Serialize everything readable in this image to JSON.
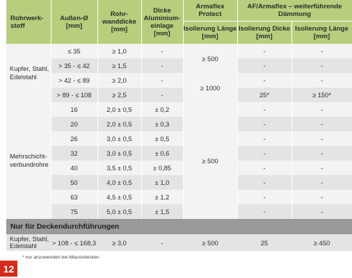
{
  "header": {
    "col1": "Rohrwerk-\nstoff",
    "col2": "Außen-Ø\n[mm]",
    "col3": "Rohr-\nwanddicke\n[mm]",
    "col4": "Dicke\nAluminium-\neinlage\n[mm]",
    "col5_top": "Armaflex\nProtect",
    "col5_sub": "Isolierung Länge\n[mm]",
    "col67_top": "AF/Armaflex – weiterführende\nDämmung",
    "col6_sub": "Isolierung Dicke\n[mm]",
    "col7_sub": "Isolierung Länge\n[mm]"
  },
  "group1": {
    "material": "Kupfer, Stahl,\nEdelstahl",
    "protect_top": "≥ 500",
    "protect_bottom": "≥ 1000",
    "rows": [
      {
        "d": "≤ 35",
        "wall": "≥ 1,0",
        "alu": "-",
        "iso_d": "-",
        "iso_l": "-"
      },
      {
        "d": "> 35 - ≤ 42",
        "wall": "≥ 1,5",
        "alu": "-",
        "iso_d": "-",
        "iso_l": "-"
      },
      {
        "d": "> 42 - ≤ 89",
        "wall": "≥ 2,0",
        "alu": "-",
        "iso_d": "-",
        "iso_l": "-"
      },
      {
        "d": "> 89 - ≤ 108",
        "wall": "≥ 2,5",
        "alu": "-",
        "iso_d": "25*",
        "iso_l": "≥ 150*"
      }
    ]
  },
  "group2": {
    "material": "Mehrschicht-\nverbundrohre",
    "protect": "≥ 500",
    "rows": [
      {
        "d": "16",
        "wall": "2,0 ± 0,5",
        "alu": "± 0,2",
        "iso_d": "-",
        "iso_l": "-"
      },
      {
        "d": "20",
        "wall": "2,0 ± 0,5",
        "alu": "± 0,3",
        "iso_d": "-",
        "iso_l": "-"
      },
      {
        "d": "26",
        "wall": "3,0 ± 0,5",
        "alu": "± 0,5",
        "iso_d": "-",
        "iso_l": "-"
      },
      {
        "d": "32",
        "wall": "3,0 ± 0,5",
        "alu": "± 0,6",
        "iso_d": "-",
        "iso_l": "-"
      },
      {
        "d": "40",
        "wall": "3,5 ± 0,5",
        "alu": "± 0,85",
        "iso_d": "-",
        "iso_l": "-"
      },
      {
        "d": "50",
        "wall": "4,0 ± 0,5",
        "alu": "± 1,0",
        "iso_d": "-",
        "iso_l": "-"
      },
      {
        "d": "63",
        "wall": "4,5 ± 0,5",
        "alu": "± 1,2",
        "iso_d": "-",
        "iso_l": "-"
      },
      {
        "d": "75",
        "wall": "5,0 ± 0,5",
        "alu": "± 1,5",
        "iso_d": "-",
        "iso_l": "-"
      }
    ]
  },
  "section_bar": "Nur für Deckendurchführungen",
  "group3": {
    "material": "Kupfer, Stahl,\nEdelstahl",
    "d": "> 108 - ≤ 168,3",
    "wall": "≥ 3,0",
    "alu": "-",
    "protect": "≥ 500",
    "iso_d": "25",
    "iso_l": "≥ 450"
  },
  "footnote": "* nur anzuwenden bei Massivdecken",
  "page_badge": "12",
  "colors": {
    "header_bg": "#b7cf7c",
    "row_light": "#f3f3f3",
    "row_dark": "#e4e4e4",
    "bar_bg": "#9a9a9a",
    "badge_bg": "#d42a1c"
  }
}
